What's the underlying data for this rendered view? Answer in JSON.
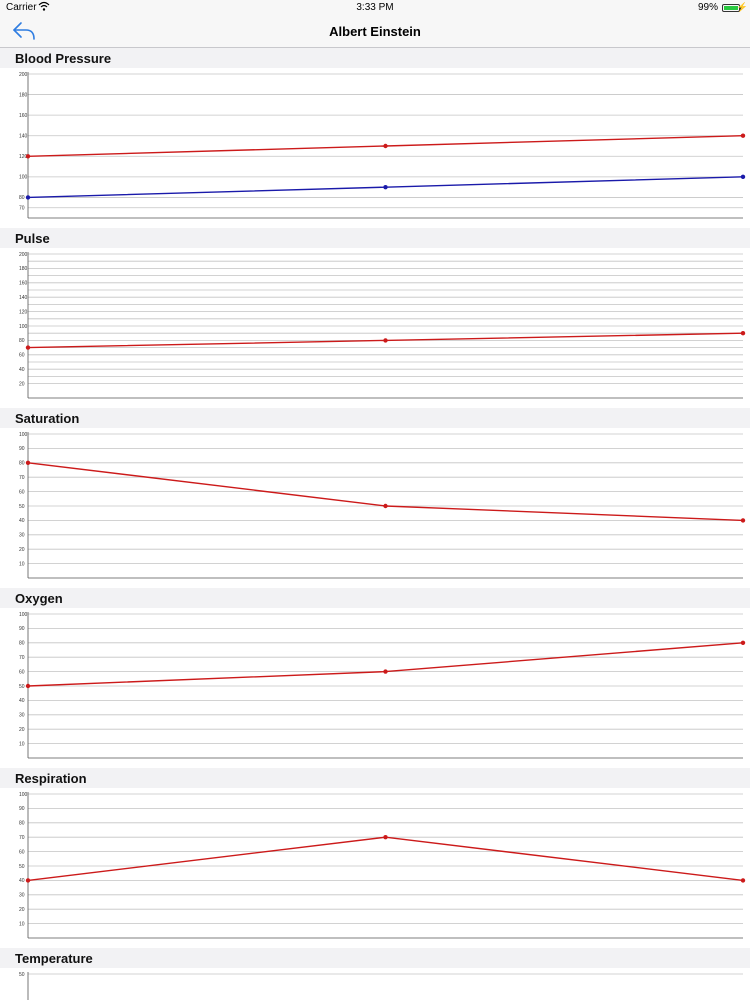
{
  "status": {
    "carrier": "Carrier",
    "time": "3:33 PM",
    "battery": "99%"
  },
  "nav": {
    "title": "Albert Einstein"
  },
  "chart_data": [
    {
      "type": "line",
      "title": "Blood Pressure",
      "x": [
        1,
        2,
        3
      ],
      "ylim": [
        60,
        200
      ],
      "yticks": [
        70,
        80,
        100,
        120,
        140,
        160,
        180,
        200
      ],
      "ytick_labels": [
        "70",
        "80",
        "100",
        "120",
        "140",
        "160",
        "180",
        "200"
      ],
      "series": [
        {
          "values": [
            120,
            130,
            140
          ],
          "color": "#cc1a1a"
        },
        {
          "values": [
            80,
            90,
            100
          ],
          "color": "#1a1aaa"
        }
      ],
      "grid": true
    },
    {
      "type": "line",
      "title": "Pulse",
      "x": [
        1,
        2,
        3
      ],
      "ylim": [
        0,
        200
      ],
      "yticks": [
        20,
        30,
        40,
        50,
        60,
        70,
        80,
        90,
        100,
        110,
        120,
        130,
        140,
        150,
        160,
        170,
        180,
        190,
        200
      ],
      "ytick_labels": [
        "20",
        "",
        "40",
        "",
        "60",
        "",
        "80",
        "",
        "100",
        "",
        "120",
        "",
        "140",
        "",
        "160",
        "",
        "180",
        "",
        "200"
      ],
      "series": [
        {
          "values": [
            70,
            80,
            90
          ],
          "color": "#cc1a1a"
        }
      ],
      "grid": true
    },
    {
      "type": "line",
      "title": "Saturation",
      "x": [
        1,
        2,
        3
      ],
      "ylim": [
        0,
        100
      ],
      "yticks": [
        10,
        20,
        30,
        40,
        50,
        60,
        70,
        80,
        90,
        100
      ],
      "ytick_labels": [
        "10",
        "20",
        "30",
        "40",
        "50",
        "60",
        "70",
        "80",
        "90",
        "100"
      ],
      "series": [
        {
          "values": [
            80,
            50,
            40
          ],
          "color": "#cc1a1a"
        }
      ],
      "grid": true
    },
    {
      "type": "line",
      "title": "Oxygen",
      "x": [
        1,
        2,
        3
      ],
      "ylim": [
        0,
        100
      ],
      "yticks": [
        10,
        20,
        30,
        40,
        50,
        60,
        70,
        80,
        90,
        100
      ],
      "ytick_labels": [
        "10",
        "20",
        "30",
        "40",
        "50",
        "60",
        "70",
        "80",
        "90",
        "100"
      ],
      "series": [
        {
          "values": [
            50,
            60,
            80
          ],
          "color": "#cc1a1a"
        }
      ],
      "grid": true
    },
    {
      "type": "line",
      "title": "Respiration",
      "x": [
        1,
        2,
        3
      ],
      "ylim": [
        0,
        100
      ],
      "yticks": [
        10,
        20,
        30,
        40,
        50,
        60,
        70,
        80,
        90,
        100
      ],
      "ytick_labels": [
        "10",
        "20",
        "30",
        "40",
        "50",
        "60",
        "70",
        "80",
        "90",
        "100"
      ],
      "series": [
        {
          "values": [
            40,
            70,
            40
          ],
          "color": "#cc1a1a"
        }
      ],
      "grid": true
    },
    {
      "type": "line",
      "title": "Temperature",
      "x": [],
      "ylim": [
        0,
        50
      ],
      "yticks": [
        50
      ],
      "ytick_labels": [
        "50"
      ],
      "series": [],
      "grid": true
    }
  ]
}
